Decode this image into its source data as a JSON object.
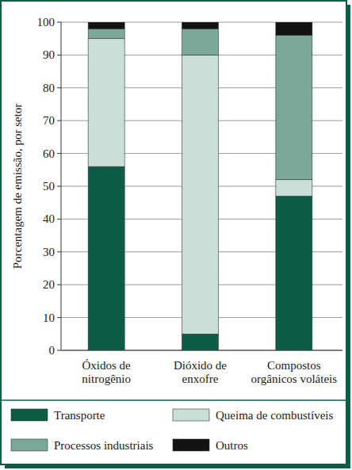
{
  "chart_data": {
    "type": "bar",
    "stacked": true,
    "y_label": "Porcentagem de emissão, por setor",
    "categories": [
      "Óxidos de nitrogênio",
      "Dióxido de enxofre",
      "Compostos orgânicos voláteis"
    ],
    "series": [
      {
        "name": "Transporte",
        "color": "#0f5c46",
        "values": [
          56,
          5,
          47
        ]
      },
      {
        "name": "Queima de combustíveis",
        "color": "#c9ded4",
        "values": [
          39,
          85,
          5
        ]
      },
      {
        "name": "Processos industriais",
        "color": "#7ba897",
        "values": [
          3,
          8,
          44
        ]
      },
      {
        "name": "Outros",
        "color": "#121212",
        "values": [
          2,
          2,
          4
        ]
      }
    ],
    "ylim": [
      0,
      100
    ],
    "yticks": [
      0,
      10,
      20,
      30,
      40,
      50,
      60,
      70,
      80,
      90,
      100
    ],
    "grid": true,
    "legend": "bottom"
  }
}
